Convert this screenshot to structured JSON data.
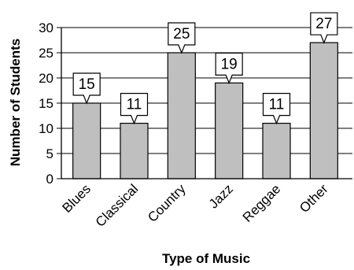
{
  "chart_data": {
    "type": "bar",
    "categories": [
      "Blues",
      "Classical",
      "Country",
      "Jazz",
      "Reggae",
      "Other"
    ],
    "values": [
      15,
      11,
      25,
      19,
      11,
      27
    ],
    "data_labels": [
      "15",
      "11",
      "25",
      "19",
      "11",
      "27"
    ],
    "y_ticks": [
      "0",
      "5",
      "10",
      "15",
      "20",
      "25",
      "30"
    ],
    "xlabel": "Type of Music",
    "ylabel": "Number of Students",
    "ylim": [
      0,
      30
    ],
    "y_step": 5,
    "grid": "horizontal",
    "colors": {
      "bar_fill": "#bfbfbf",
      "stroke": "#000000",
      "callout_fill": "#ffffff"
    }
  }
}
